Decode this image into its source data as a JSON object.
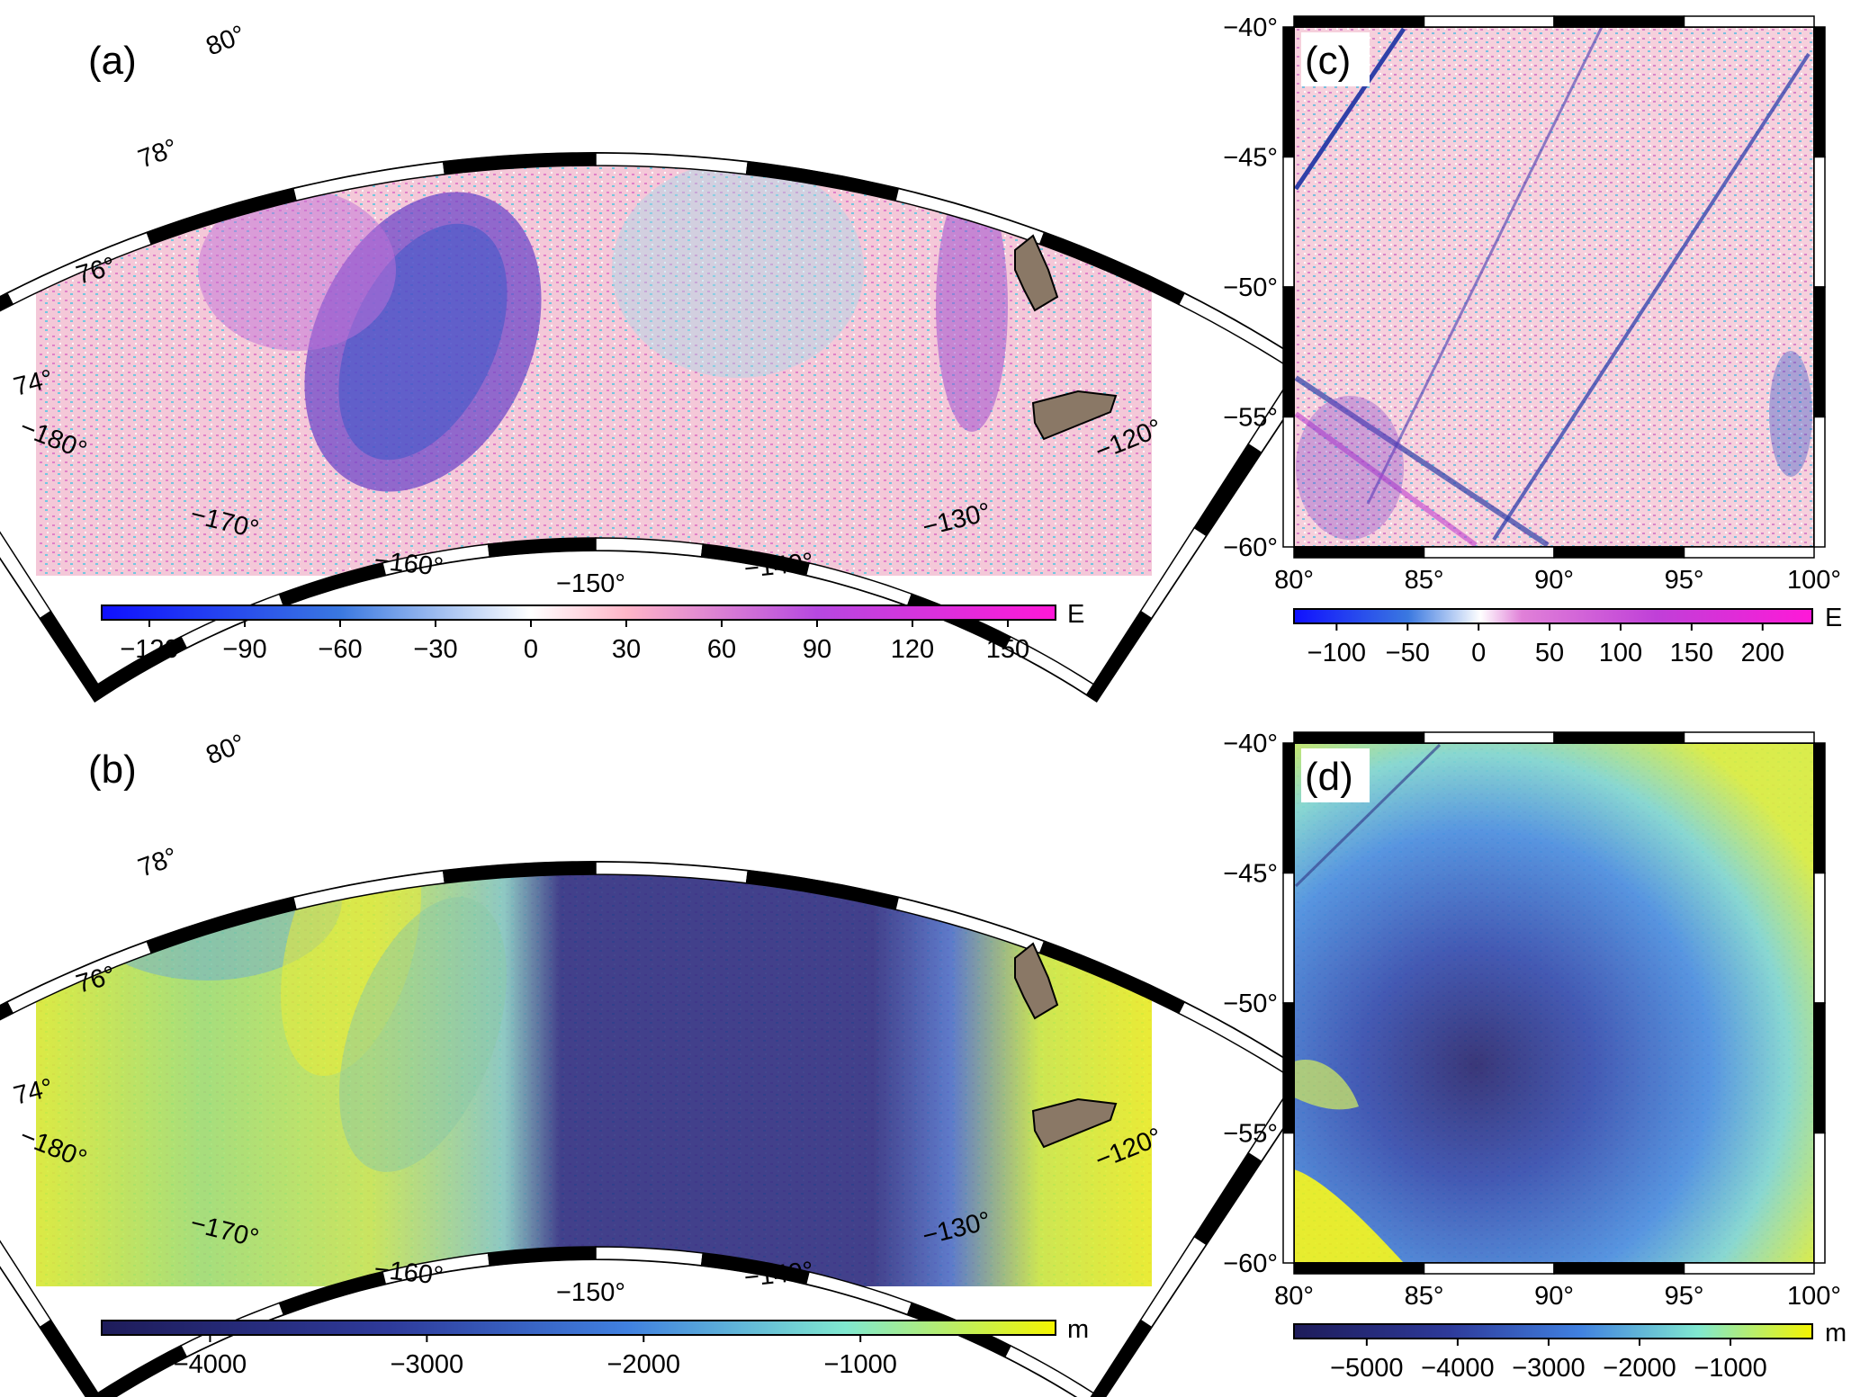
{
  "panels": {
    "a": {
      "label": "(a)",
      "lat_labels": [
        "80°",
        "78°",
        "76°",
        "74°"
      ],
      "lon_labels": [
        "−180°",
        "−170°",
        "−160°",
        "−150°",
        "−140°",
        "−130°",
        "−120°"
      ],
      "colorbar": {
        "unit": "E",
        "ticks": [
          "−120",
          "−90",
          "−60",
          "−30",
          "0",
          "30",
          "60",
          "90",
          "120",
          "150"
        ],
        "min": -135,
        "max": 165,
        "colors": [
          "#1010ff",
          "#3a78e0",
          "#ffffff",
          "#ffb6c8",
          "#b648e0",
          "#ff18d8"
        ]
      }
    },
    "b": {
      "label": "(b)",
      "lat_labels": [
        "80°",
        "78°",
        "76°",
        "74°"
      ],
      "lon_labels": [
        "−180°",
        "−170°",
        "−160°",
        "−150°",
        "−140°",
        "−130°",
        "−120°"
      ],
      "colorbar": {
        "unit": "m",
        "ticks": [
          "−4000",
          "−3000",
          "−2000",
          "−1000"
        ],
        "min": -4500,
        "max": -100,
        "colors": [
          "#1e1c5a",
          "#2e3a9a",
          "#4080e0",
          "#80e8d0",
          "#f4f400"
        ]
      }
    },
    "c": {
      "label": "(c)",
      "lat_labels": [
        "−40°",
        "−45°",
        "−50°",
        "−55°",
        "−60°"
      ],
      "lon_labels": [
        "80°",
        "85°",
        "90°",
        "95°",
        "100°"
      ],
      "colorbar": {
        "unit": "E",
        "ticks": [
          "−100",
          "−50",
          "0",
          "50",
          "100",
          "150",
          "200"
        ],
        "min": -130,
        "max": 235,
        "colors": [
          "#1010ff",
          "#3a78e0",
          "#ffffff",
          "#ffb6c8",
          "#b648e0",
          "#ff18d8"
        ]
      }
    },
    "d": {
      "label": "(d)",
      "lat_labels": [
        "−40°",
        "−45°",
        "−50°",
        "−55°",
        "−60°"
      ],
      "lon_labels": [
        "80°",
        "85°",
        "90°",
        "95°",
        "100°"
      ],
      "colorbar": {
        "unit": "m",
        "ticks": [
          "−5000",
          "−4000",
          "−3000",
          "−2000",
          "−1000"
        ],
        "min": -5800,
        "max": -100,
        "colors": [
          "#1e1c5a",
          "#2e3a9a",
          "#4080e0",
          "#80e8d0",
          "#f4f400"
        ]
      }
    }
  },
  "land_color": "#8a7866"
}
